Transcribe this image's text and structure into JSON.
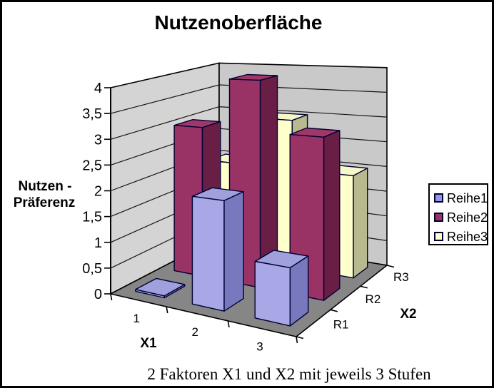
{
  "window": {
    "background": "#FFFFFF",
    "border_color": "#000000"
  },
  "title": "Nutzenoberfläche",
  "caption": "2 Faktoren X1 und X2 mit jeweils 3 Stufen",
  "chart_data": {
    "type": "bar",
    "subtype": "3d-column",
    "title": "Nutzenoberfläche",
    "categories": [
      "1",
      "2",
      "3"
    ],
    "series": [
      {
        "name": "Reihe1",
        "row_label": "R1",
        "values": [
          0,
          2,
          1
        ],
        "color": "#A8A8E6",
        "color_top": "#A0A0DC",
        "color_side": "#7878BE",
        "swatch_color": "#9494E8"
      },
      {
        "name": "Reihe2",
        "row_label": "R2",
        "values": [
          3,
          4,
          3
        ],
        "color": "#993366",
        "color_top": "#A03769",
        "color_side": "#691E46",
        "swatch_color": "#993366"
      },
      {
        "name": "Reihe3",
        "row_label": "R3",
        "values": [
          2,
          3,
          2
        ],
        "color": "#FFFFCC",
        "color_top": "#F7F7C9",
        "color_side": "#B9B98F",
        "swatch_color": "#FFFFCC"
      }
    ],
    "value_axis": {
      "title_lines": [
        "Nutzen -",
        "Präferenz"
      ],
      "min": 0,
      "max": 4,
      "step": 0.5,
      "tick_labels": [
        "0",
        "0,5",
        "1",
        "1,5",
        "2",
        "2,5",
        "3",
        "3,5",
        "4"
      ]
    },
    "category_axis": {
      "title": "X1"
    },
    "series_axis": {
      "title": "X2",
      "labels": [
        "R1",
        "R2",
        "R3"
      ]
    },
    "legend": {
      "position": "right",
      "entries": [
        "Reihe1",
        "Reihe2",
        "Reihe3"
      ]
    },
    "walls": {
      "left_color": "#D4D4D4",
      "right_color": "#C9C9C9",
      "floor_color": "#868686",
      "gridline_color": "#151515",
      "outline_color": "#000000"
    },
    "bar_outline_color": "#000033",
    "grid": true,
    "ylim": [
      0,
      4
    ]
  }
}
